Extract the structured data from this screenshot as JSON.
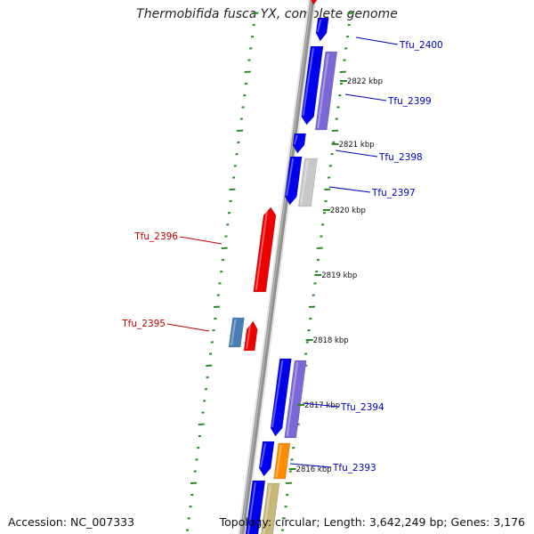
{
  "title": "Thermobifida fusca YX, complete genome",
  "accession": "Accession: NC_007333",
  "summary": "Topology: circular; Length: 3,642,249 bp; Genes: 3,176",
  "colors": {
    "backbone": "#909090",
    "tick": "#2a8a2a",
    "forward_label": "#0000c0",
    "reverse_label": "#c00000",
    "blue": "#0000ee",
    "purple": "#7b68d6",
    "light_gray": "#c8c8c8",
    "steel_blue": "#4a7db5",
    "red": "#ee0000",
    "orange": "#ff8c00",
    "khaki": "#c7b87a"
  },
  "chart_data": {
    "type": "genome-map",
    "kbp_ticks": [
      {
        "kbp": 2822,
        "label": "2822 kbp"
      },
      {
        "kbp": 2821,
        "label": "2821 kbp"
      },
      {
        "kbp": 2820,
        "label": "2820 kbp"
      },
      {
        "kbp": 2819,
        "label": "2819 kbp"
      },
      {
        "kbp": 2818,
        "label": "2818 kbp"
      },
      {
        "kbp": 2817,
        "label": "2817 kbp"
      },
      {
        "kbp": 2816,
        "label": "2816 kbp"
      }
    ],
    "gene_labels": [
      {
        "text": "Tfu_2400",
        "strand": "forward"
      },
      {
        "text": "Tfu_2399",
        "strand": "forward"
      },
      {
        "text": "Tfu_2398",
        "strand": "forward"
      },
      {
        "text": "Tfu_2397",
        "strand": "forward"
      },
      {
        "text": "Tfu_2396",
        "strand": "reverse"
      },
      {
        "text": "Tfu_2395",
        "strand": "reverse"
      },
      {
        "text": "Tfu_2394",
        "strand": "forward"
      },
      {
        "text": "Tfu_2393",
        "strand": "forward"
      }
    ]
  }
}
